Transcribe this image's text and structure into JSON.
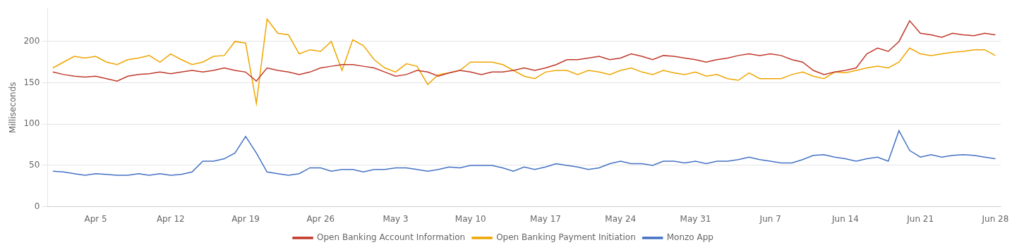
{
  "chart_data": {
    "type": "line",
    "ylabel": "Milliseconds",
    "categories": [
      null,
      null,
      null,
      null,
      "Apr 5",
      null,
      null,
      null,
      null,
      null,
      null,
      "Apr 12",
      null,
      null,
      null,
      null,
      null,
      null,
      "Apr 19",
      null,
      null,
      null,
      null,
      null,
      null,
      "Apr 26",
      null,
      null,
      null,
      null,
      null,
      null,
      "May 3",
      null,
      null,
      null,
      null,
      null,
      null,
      "May 10",
      null,
      null,
      null,
      null,
      null,
      null,
      "May 17",
      null,
      null,
      null,
      null,
      null,
      null,
      "May 24",
      null,
      null,
      null,
      null,
      null,
      null,
      "May 31",
      null,
      null,
      null,
      null,
      null,
      null,
      "Jun 7",
      null,
      null,
      null,
      null,
      null,
      null,
      "Jun 14",
      null,
      null,
      null,
      null,
      null,
      null,
      "Jun 21",
      null,
      null,
      null,
      null,
      null,
      null,
      "Jun 28"
    ],
    "series": [
      {
        "name": "Open Banking Account Information",
        "color": "#C0392B",
        "values": [
          163,
          160,
          158,
          157,
          158,
          155,
          152,
          158,
          160,
          161,
          163,
          161,
          163,
          165,
          163,
          165,
          168,
          165,
          163,
          152,
          168,
          165,
          163,
          160,
          163,
          168,
          170,
          172,
          172,
          170,
          168,
          163,
          158,
          160,
          165,
          163,
          158,
          162,
          165,
          163,
          160,
          163,
          163,
          165,
          168,
          165,
          168,
          172,
          178,
          178,
          180,
          182,
          178,
          180,
          185,
          182,
          178,
          183,
          182,
          180,
          178,
          175,
          178,
          180,
          183,
          185,
          183,
          185,
          183,
          178,
          175,
          165,
          160,
          163,
          165,
          168,
          185,
          192,
          188,
          200,
          225,
          210,
          208,
          205,
          210,
          208,
          207,
          210,
          208
        ]
      },
      {
        "name": "Open Banking Payment Initiation",
        "color": "#F0A500",
        "values": [
          168,
          175,
          182,
          180,
          182,
          175,
          172,
          178,
          180,
          183,
          175,
          185,
          178,
          172,
          175,
          182,
          183,
          200,
          198,
          125,
          227,
          210,
          208,
          185,
          190,
          188,
          200,
          165,
          202,
          195,
          178,
          168,
          163,
          173,
          170,
          148,
          160,
          162,
          165,
          175,
          175,
          175,
          172,
          165,
          158,
          155,
          163,
          165,
          165,
          160,
          165,
          163,
          160,
          165,
          168,
          163,
          160,
          165,
          162,
          160,
          163,
          158,
          160,
          155,
          153,
          162,
          155,
          155,
          155,
          160,
          163,
          158,
          155,
          163,
          162,
          165,
          168,
          170,
          168,
          175,
          192,
          185,
          183,
          185,
          187,
          188,
          190,
          190,
          183
        ]
      },
      {
        "name": "Monzo App",
        "color": "#4472C4",
        "values": [
          43,
          42,
          40,
          38,
          40,
          39,
          38,
          38,
          40,
          38,
          40,
          38,
          39,
          42,
          55,
          55,
          58,
          65,
          85,
          65,
          42,
          40,
          38,
          40,
          47,
          47,
          43,
          45,
          45,
          42,
          45,
          45,
          47,
          47,
          45,
          43,
          45,
          48,
          47,
          50,
          50,
          50,
          47,
          43,
          48,
          45,
          48,
          52,
          50,
          48,
          45,
          47,
          52,
          55,
          52,
          52,
          50,
          55,
          55,
          53,
          55,
          52,
          55,
          55,
          57,
          60,
          57,
          55,
          53,
          53,
          57,
          62,
          63,
          60,
          58,
          55,
          58,
          60,
          55,
          92,
          68,
          60,
          63,
          60,
          62,
          63,
          62,
          60,
          58
        ]
      }
    ],
    "ylim": [
      0,
      240
    ],
    "yticks": [
      0,
      50,
      100,
      150,
      200
    ],
    "grid": true,
    "legend": "bottom"
  }
}
